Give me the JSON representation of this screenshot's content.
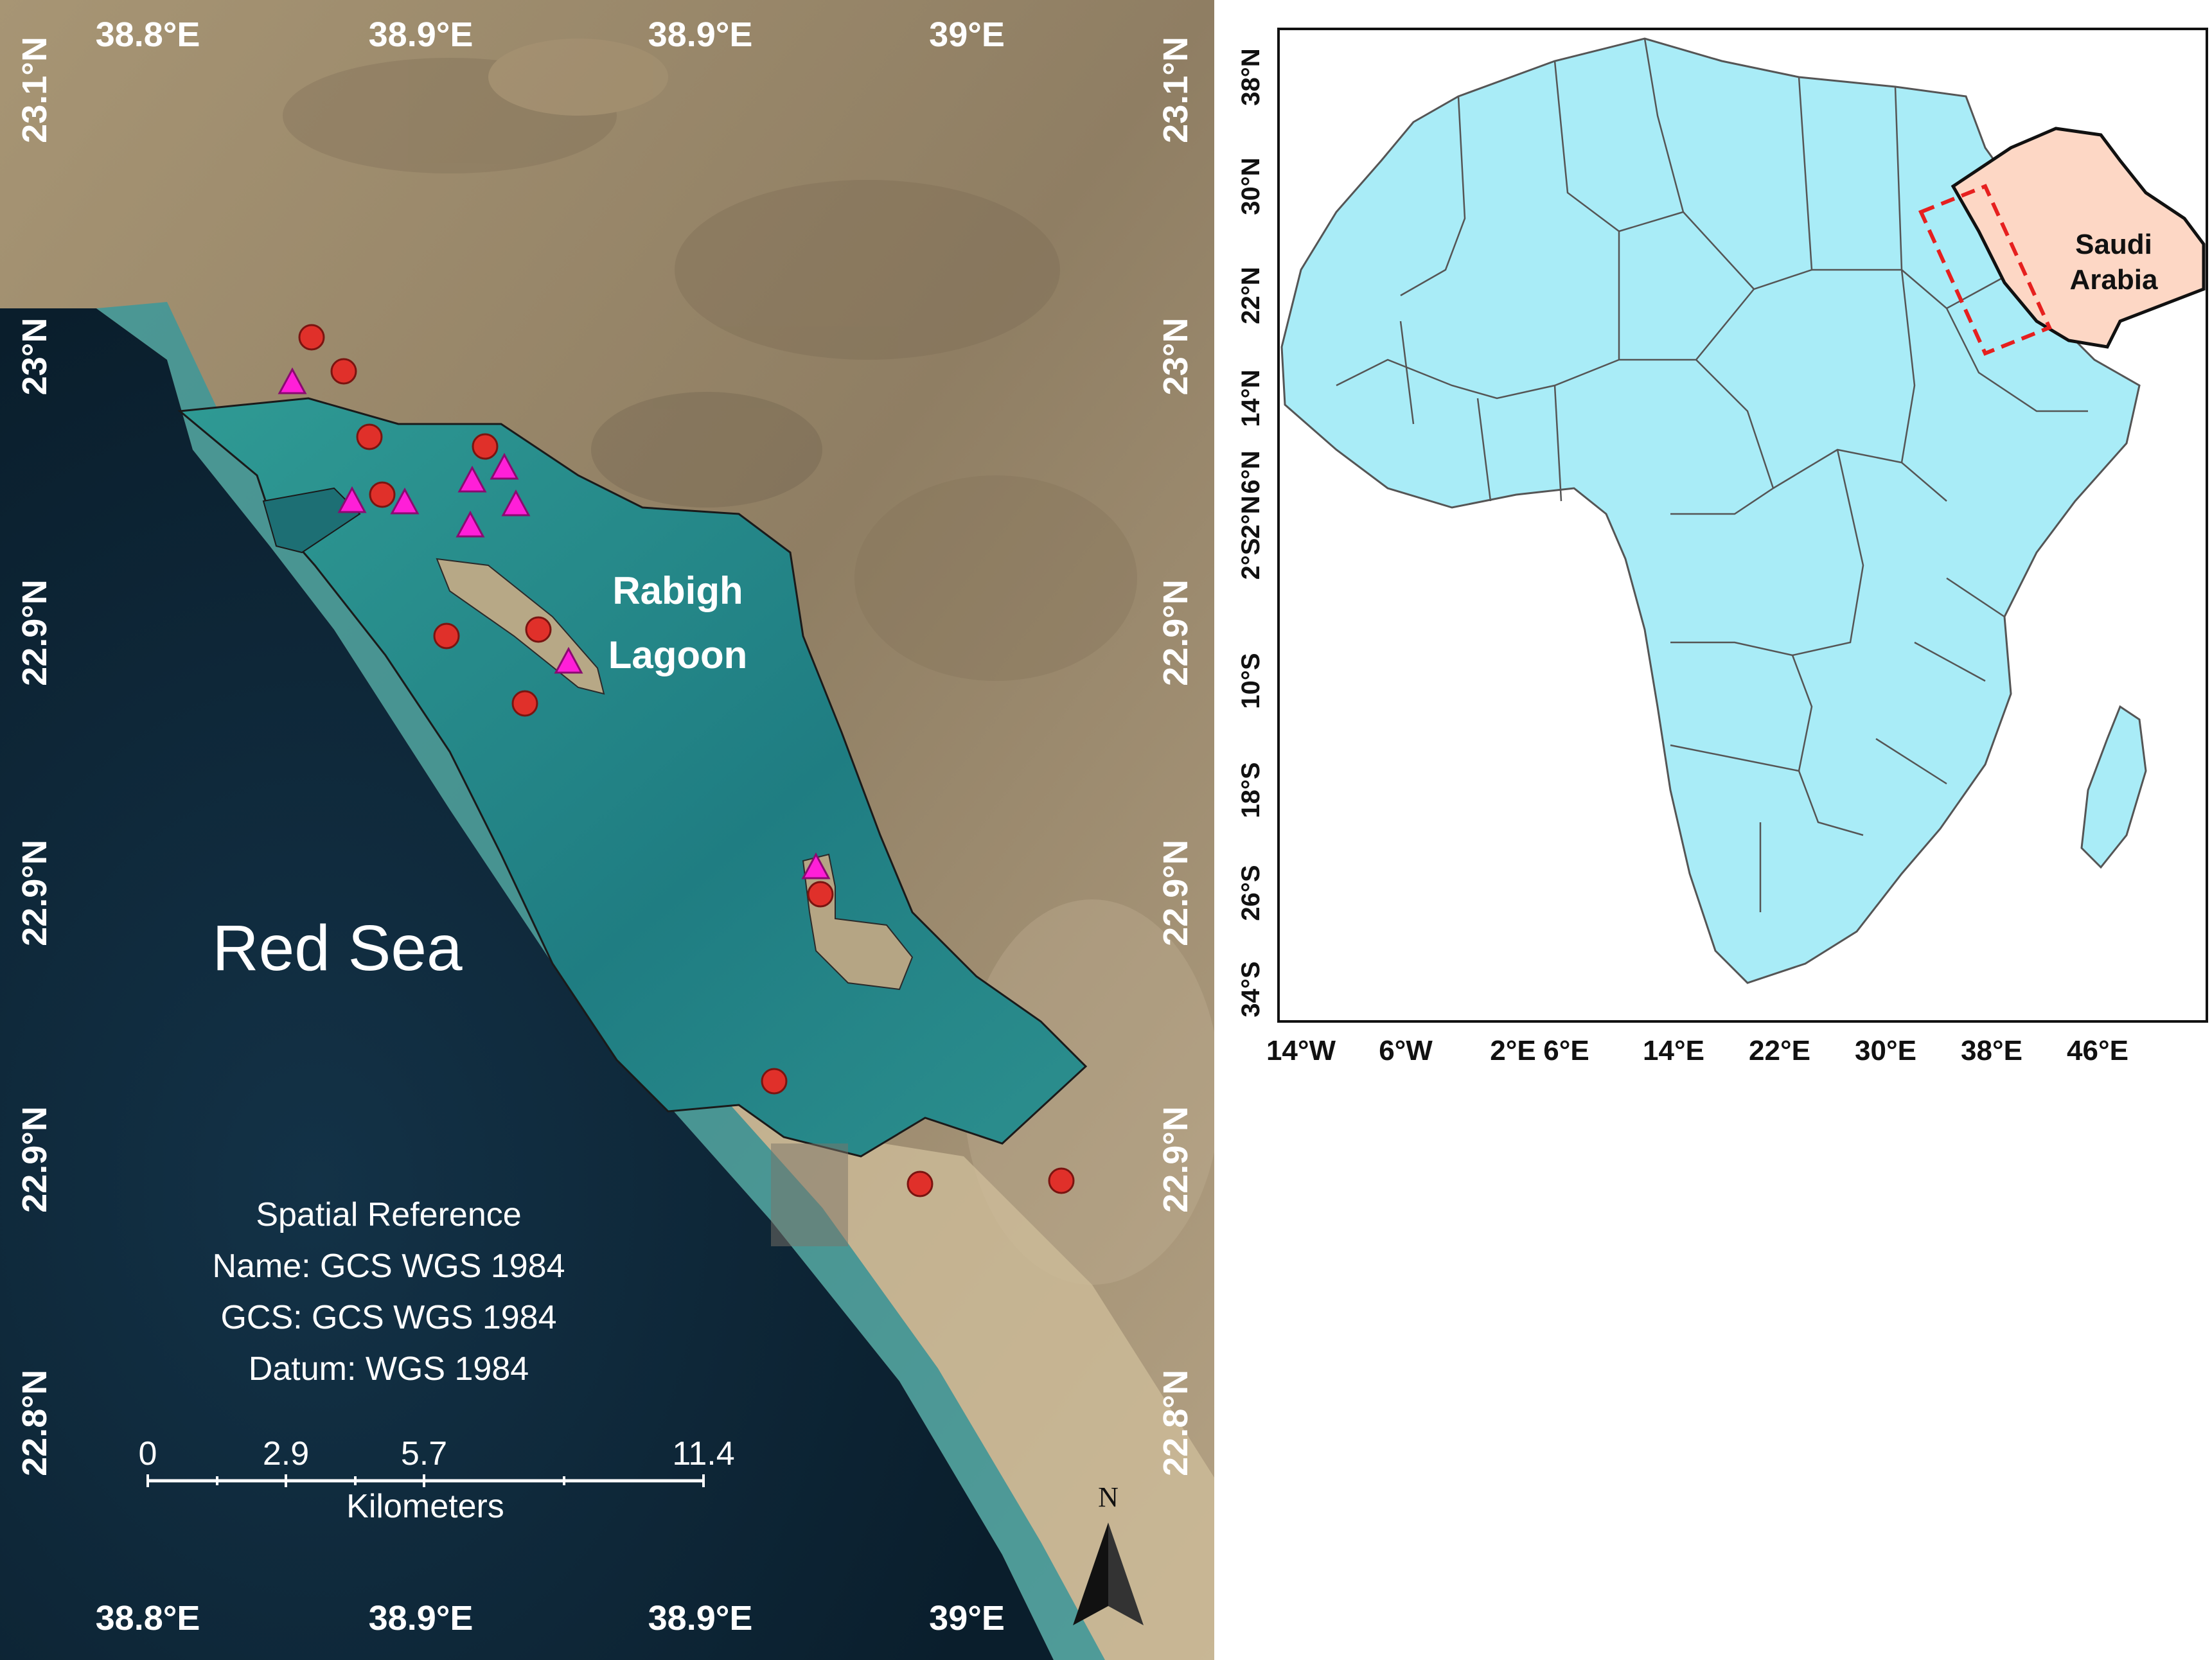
{
  "satellite_map": {
    "top_lon_labels": [
      "38.8°E",
      "38.9°E",
      "38.9°E",
      "39°E"
    ],
    "bottom_lon_labels": [
      "38.8°E",
      "38.9°E",
      "38.9°E",
      "39°E"
    ],
    "left_lat_labels": [
      "23.1°N",
      "23°N",
      "22.9°N",
      "22.9°N",
      "22.9°N",
      "22.8°N"
    ],
    "right_lat_labels": [
      "23.1°N",
      "23°N",
      "22.9°N",
      "22.9°N",
      "22.9°N",
      "22.8°N"
    ],
    "sea_label": "Red Sea",
    "lagoon_label_line1": "Rabigh",
    "lagoon_label_line2": "Lagoon",
    "spatial_reference": {
      "title": "Spatial Reference",
      "name": "Name: GCS WGS 1984",
      "gcs": "GCS: GCS WGS 1984",
      "datum": "Datum: WGS 1984"
    },
    "scale_bar": {
      "ticks": [
        "0",
        "2.9",
        "5.7",
        "11.4"
      ],
      "unit": "Kilometers"
    },
    "north_arrow_label": "N",
    "colors": {
      "sea_deep": "#0f2a3d",
      "sea_shallow": "#2aa09a",
      "land": "#9c8a6e",
      "circle_marker": "#e0302a",
      "triangle_marker": "#ff1fd8"
    }
  },
  "inset_map": {
    "top_lon_labels": [
      "14°W",
      "6°W",
      "2°E",
      "6°E",
      "14°E",
      "22°E",
      "30°E",
      "38°E",
      "46°E"
    ],
    "right_lat_labels": [
      "38°N",
      "30°N",
      "22°N",
      "14°N",
      "6°N",
      "2°S",
      "2°N",
      "10°S",
      "18°S",
      "26°S",
      "34°S"
    ],
    "country_label_line1": "Saudi",
    "country_label_line2": "Arabia",
    "colors": {
      "africa_fill": "#a9ecf7",
      "saudi_fill": "#fdd7c5",
      "study_area_box": "#e6201f",
      "borders": "#555555"
    }
  }
}
